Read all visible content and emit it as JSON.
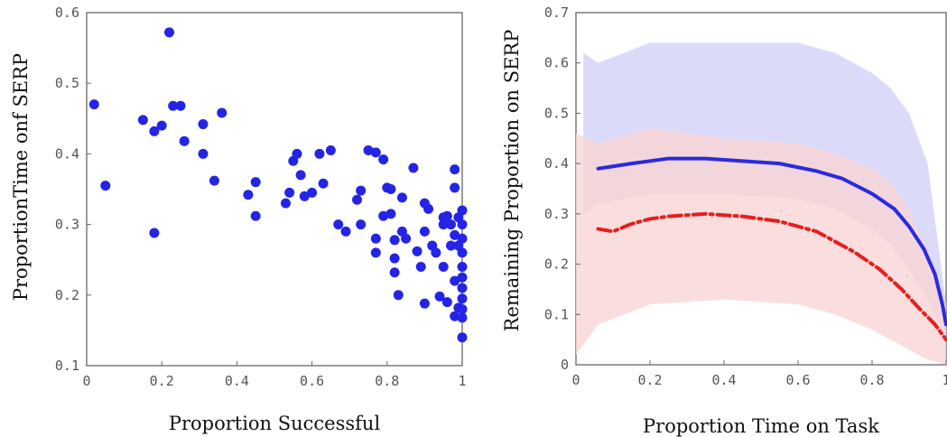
{
  "chart_data": [
    {
      "type": "scatter",
      "xlabel": "Proportion Successful",
      "ylabel": "ProportionTime onf SERP",
      "xlim": [
        0,
        1
      ],
      "ylim": [
        0.1,
        0.6
      ],
      "xticks": [
        "0",
        "0.2",
        "0.4",
        "0.6",
        "0.8",
        "1"
      ],
      "yticks": [
        "0.1",
        "0.2",
        "0.3",
        "0.4",
        "0.5",
        "0.6"
      ],
      "grid": false,
      "marker_color": "#2424e6",
      "points": [
        [
          0.02,
          0.47
        ],
        [
          0.05,
          0.355
        ],
        [
          0.15,
          0.448
        ],
        [
          0.18,
          0.432
        ],
        [
          0.2,
          0.44
        ],
        [
          0.18,
          0.288
        ],
        [
          0.22,
          0.572
        ],
        [
          0.23,
          0.468
        ],
        [
          0.25,
          0.468
        ],
        [
          0.26,
          0.418
        ],
        [
          0.31,
          0.442
        ],
        [
          0.31,
          0.4
        ],
        [
          0.34,
          0.362
        ],
        [
          0.36,
          0.458
        ],
        [
          0.43,
          0.342
        ],
        [
          0.45,
          0.36
        ],
        [
          0.45,
          0.312
        ],
        [
          0.53,
          0.33
        ],
        [
          0.54,
          0.345
        ],
        [
          0.55,
          0.39
        ],
        [
          0.56,
          0.4
        ],
        [
          0.57,
          0.37
        ],
        [
          0.58,
          0.34
        ],
        [
          0.6,
          0.345
        ],
        [
          0.62,
          0.4
        ],
        [
          0.63,
          0.358
        ],
        [
          0.65,
          0.405
        ],
        [
          0.67,
          0.3
        ],
        [
          0.69,
          0.29
        ],
        [
          0.72,
          0.335
        ],
        [
          0.73,
          0.348
        ],
        [
          0.73,
          0.3
        ],
        [
          0.75,
          0.405
        ],
        [
          0.77,
          0.402
        ],
        [
          0.77,
          0.28
        ],
        [
          0.77,
          0.26
        ],
        [
          0.79,
          0.392
        ],
        [
          0.79,
          0.312
        ],
        [
          0.8,
          0.352
        ],
        [
          0.81,
          0.315
        ],
        [
          0.81,
          0.35
        ],
        [
          0.82,
          0.278
        ],
        [
          0.82,
          0.252
        ],
        [
          0.82,
          0.232
        ],
        [
          0.83,
          0.2
        ],
        [
          0.84,
          0.338
        ],
        [
          0.84,
          0.29
        ],
        [
          0.85,
          0.28
        ],
        [
          0.87,
          0.38
        ],
        [
          0.88,
          0.262
        ],
        [
          0.89,
          0.24
        ],
        [
          0.9,
          0.33
        ],
        [
          0.9,
          0.29
        ],
        [
          0.9,
          0.188
        ],
        [
          0.91,
          0.322
        ],
        [
          0.92,
          0.27
        ],
        [
          0.93,
          0.26
        ],
        [
          0.94,
          0.198
        ],
        [
          0.95,
          0.31
        ],
        [
          0.95,
          0.3
        ],
        [
          0.95,
          0.24
        ],
        [
          0.96,
          0.312
        ],
        [
          0.96,
          0.19
        ],
        [
          0.97,
          0.3
        ],
        [
          0.97,
          0.27
        ],
        [
          0.98,
          0.378
        ],
        [
          0.98,
          0.352
        ],
        [
          0.98,
          0.285
        ],
        [
          0.98,
          0.22
        ],
        [
          0.98,
          0.17
        ],
        [
          0.99,
          0.31
        ],
        [
          0.99,
          0.27
        ],
        [
          0.99,
          0.182
        ],
        [
          1.0,
          0.32
        ],
        [
          1.0,
          0.3
        ],
        [
          1.0,
          0.28
        ],
        [
          1.0,
          0.26
        ],
        [
          1.0,
          0.24
        ],
        [
          1.0,
          0.225
        ],
        [
          1.0,
          0.21
        ],
        [
          1.0,
          0.195
        ],
        [
          1.0,
          0.18
        ],
        [
          1.0,
          0.168
        ],
        [
          1.0,
          0.14
        ]
      ]
    },
    {
      "type": "line",
      "xlabel": "Proportion Time on Task",
      "ylabel": "Remaining Proportion on SERP",
      "xlim": [
        0,
        1
      ],
      "ylim": [
        0,
        0.7
      ],
      "xticks": [
        "0",
        "0.2",
        "0.4",
        "0.6",
        "0.8",
        "1"
      ],
      "yticks": [
        "0",
        "0.1",
        "0.2",
        "0.3",
        "0.4",
        "0.5",
        "0.6",
        "0.7"
      ],
      "grid": false,
      "series": [
        {
          "style": "solid",
          "color": "#2a2ae0",
          "x": [
            0.06,
            0.15,
            0.25,
            0.35,
            0.45,
            0.55,
            0.65,
            0.72,
            0.8,
            0.86,
            0.9,
            0.94,
            0.97,
            0.99,
            1.0
          ],
          "y": [
            0.39,
            0.4,
            0.41,
            0.41,
            0.405,
            0.4,
            0.385,
            0.37,
            0.34,
            0.31,
            0.275,
            0.23,
            0.18,
            0.12,
            0.08
          ]
        },
        {
          "style": "dash-dot",
          "color": "#e61e1e",
          "x": [
            0.06,
            0.1,
            0.15,
            0.2,
            0.25,
            0.35,
            0.45,
            0.55,
            0.65,
            0.75,
            0.82,
            0.88,
            0.93,
            0.97,
            1.0
          ],
          "y": [
            0.27,
            0.265,
            0.28,
            0.29,
            0.295,
            0.3,
            0.295,
            0.285,
            0.265,
            0.225,
            0.19,
            0.15,
            0.11,
            0.08,
            0.05
          ]
        }
      ],
      "background_bands": [
        {
          "color": "#d2d2f8",
          "x": [
            0.02,
            0.06,
            0.2,
            0.4,
            0.6,
            0.7,
            0.8,
            0.85,
            0.9,
            0.95,
            1.0
          ],
          "upper": [
            0.62,
            0.6,
            0.64,
            0.64,
            0.64,
            0.62,
            0.58,
            0.55,
            0.5,
            0.4,
            0.12
          ],
          "lower": [
            0.3,
            0.32,
            0.34,
            0.34,
            0.33,
            0.31,
            0.27,
            0.24,
            0.19,
            0.13,
            0.05
          ]
        },
        {
          "color": "#f9d4d4",
          "x": [
            0.0,
            0.06,
            0.2,
            0.4,
            0.6,
            0.7,
            0.8,
            0.85,
            0.9,
            0.95,
            1.0
          ],
          "upper": [
            0.46,
            0.44,
            0.47,
            0.45,
            0.44,
            0.42,
            0.39,
            0.36,
            0.31,
            0.22,
            0.1
          ],
          "lower": [
            0.02,
            0.08,
            0.12,
            0.13,
            0.12,
            0.1,
            0.07,
            0.05,
            0.03,
            0.01,
            0.0
          ]
        }
      ]
    }
  ]
}
